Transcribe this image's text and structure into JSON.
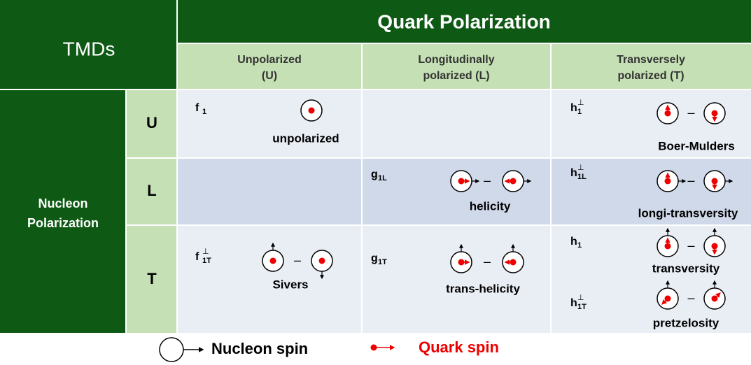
{
  "corner": "TMDs",
  "column_group": "Quark Polarization",
  "columns": [
    [
      "Unpolarized",
      "(U)"
    ],
    [
      "Longitudinally",
      "polarized (L)"
    ],
    [
      "Transversely",
      "polarized (T)"
    ]
  ],
  "row_group": [
    "Nucleon",
    "Polarization"
  ],
  "rows": [
    "U",
    "L",
    "T"
  ],
  "functions": [
    {
      "symbol": "f",
      "sub": "1",
      "name": "unpolarized"
    },
    {
      "symbol": "h",
      "sub": "1",
      "sup": "⊥",
      "name": "Boer-Mulders"
    },
    {
      "symbol": "g",
      "sub": "1L",
      "name": "helicity"
    },
    {
      "symbol": "h",
      "sub": "1L",
      "sup": "⊥",
      "name": "longi-transversity"
    },
    {
      "symbol": "f",
      "sub": "1T",
      "sup": "⊥",
      "name": "Sivers"
    },
    {
      "symbol": "g",
      "sub": "1T",
      "name": "trans-helicity"
    },
    {
      "symbol": "h",
      "sub": "1",
      "name": "transversity"
    },
    {
      "symbol": "h",
      "sub": "1T",
      "sup": "⊥",
      "name": "pretzelosity"
    }
  ],
  "minus": "–",
  "legend": [
    "Nucleon spin",
    "Quark spin"
  ]
}
